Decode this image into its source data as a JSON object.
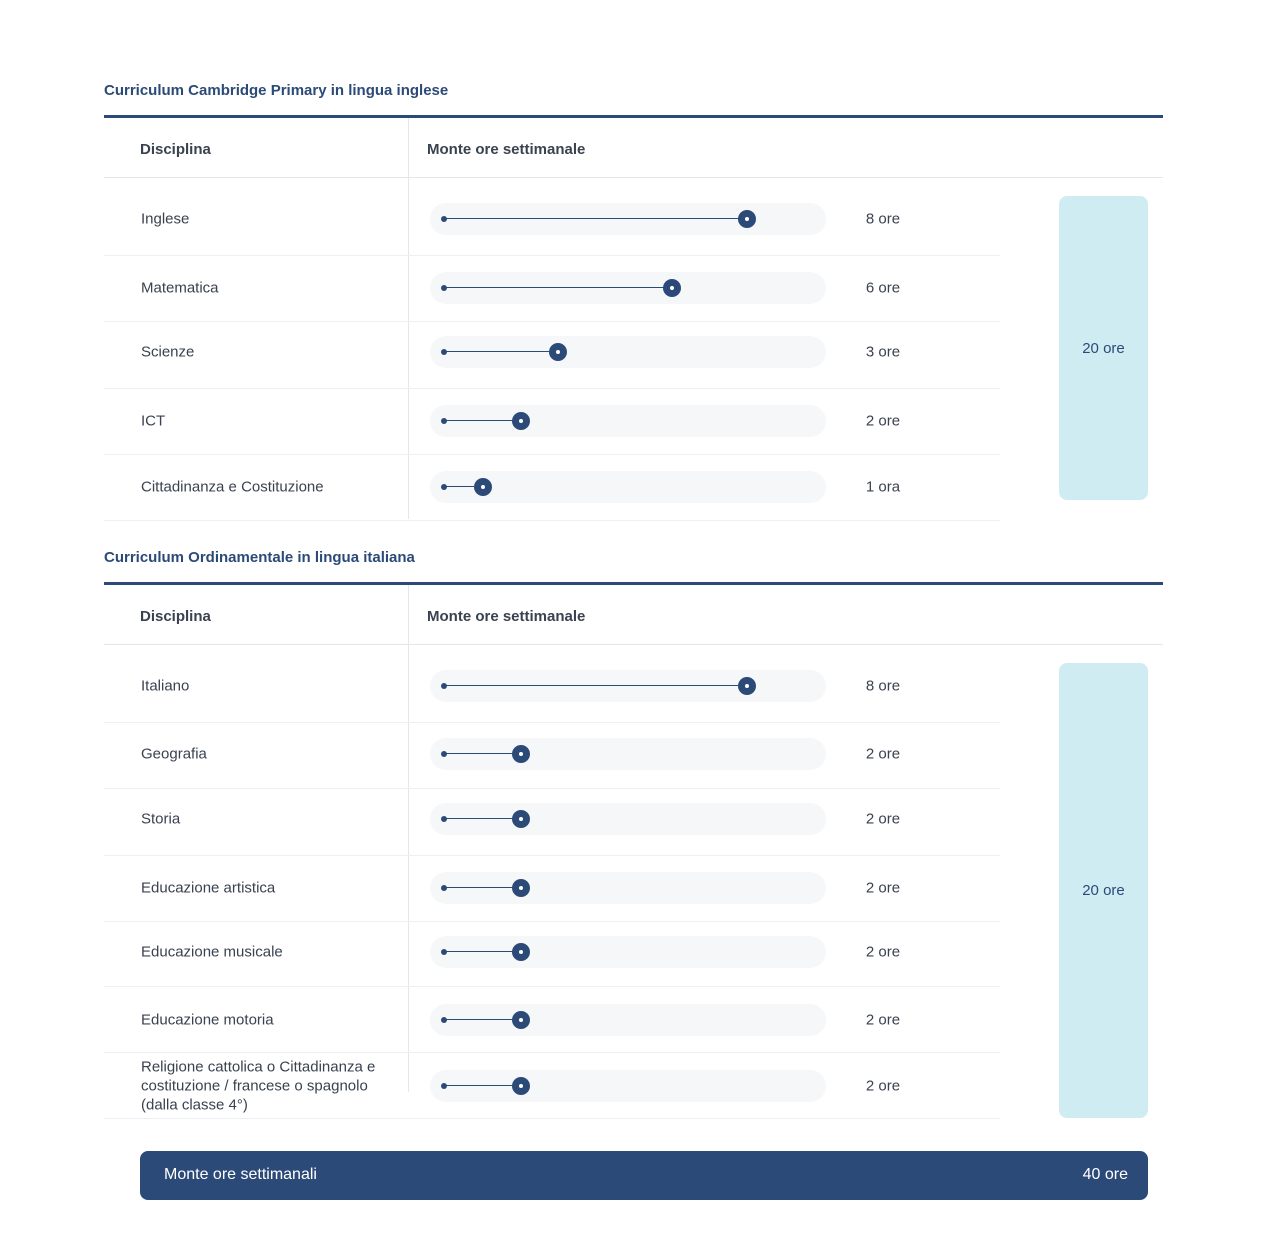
{
  "sections": [
    {
      "title": "Curriculum Cambridge Primary in lingua inglese",
      "col_subject": "Disciplina",
      "col_hours": "Monte ore settimanale",
      "total": "20 ore",
      "rows": [
        {
          "subject": "Inglese",
          "hours": 8,
          "hours_label": "8 ore"
        },
        {
          "subject": "Matematica",
          "hours": 6,
          "hours_label": "6 ore"
        },
        {
          "subject": "Scienze",
          "hours": 3,
          "hours_label": "3 ore"
        },
        {
          "subject": "ICT",
          "hours": 2,
          "hours_label": "2 ore"
        },
        {
          "subject": "Cittadinanza e Costituzione",
          "hours": 1,
          "hours_label": "1 ora"
        }
      ]
    },
    {
      "title": "Curriculum Ordinamentale in lingua italiana",
      "col_subject": "Disciplina",
      "col_hours": "Monte ore settimanale",
      "total": "20 ore",
      "rows": [
        {
          "subject": "Italiano",
          "hours": 8,
          "hours_label": "8 ore"
        },
        {
          "subject": "Geografia",
          "hours": 2,
          "hours_label": "2 ore"
        },
        {
          "subject": "Storia",
          "hours": 2,
          "hours_label": "2 ore"
        },
        {
          "subject": "Educazione artistica",
          "hours": 2,
          "hours_label": "2 ore"
        },
        {
          "subject": "Educazione musicale",
          "hours": 2,
          "hours_label": "2 ore"
        },
        {
          "subject": "Educazione motoria",
          "hours": 2,
          "hours_label": "2 ore"
        },
        {
          "subject": "Religione cattolica o Cittadinanza e costituzione / francese o spagnolo (dalla classe 4°)",
          "hours": 2,
          "hours_label": "2 ore"
        }
      ]
    }
  ],
  "summary": {
    "label": "Monte ore settimanali",
    "value": "40 ore"
  },
  "colors": {
    "accent": "#2c4a78",
    "total_bg": "#cfecf2",
    "track_bg": "#f6f7f9"
  }
}
